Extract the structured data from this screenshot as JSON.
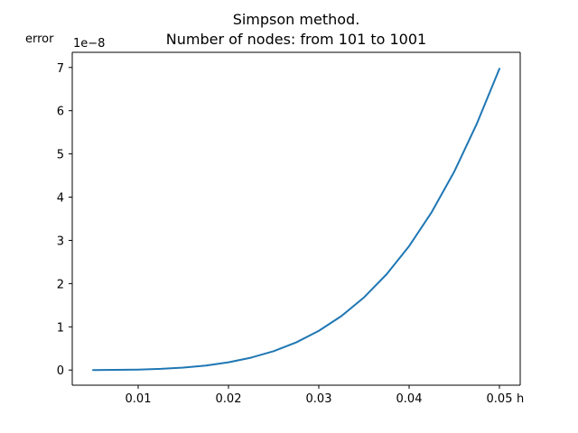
{
  "chart_data": {
    "type": "line",
    "title_lines": [
      "Simpson method.",
      "Number of nodes: from 101 to 1001"
    ],
    "xlabel": "h",
    "ylabel": "error",
    "y_offset_label": "1e−8",
    "xlim": [
      0.0027,
      0.0523
    ],
    "ylim": [
      -0.35,
      7.35
    ],
    "y_scale_note": "y values in units of 1e-8",
    "xticks": [
      0.01,
      0.02,
      0.03,
      0.04,
      0.05
    ],
    "xtick_labels": [
      "0.01",
      "0.02",
      "0.03",
      "0.04",
      "0.05"
    ],
    "yticks": [
      0,
      1,
      2,
      3,
      4,
      5,
      6,
      7
    ],
    "ytick_labels": [
      "0",
      "1",
      "2",
      "3",
      "4",
      "5",
      "6",
      "7"
    ],
    "grid": false,
    "line_color": "#1f77b4",
    "series": [
      {
        "name": "error",
        "x": [
          0.005,
          0.0075,
          0.01,
          0.0125,
          0.015,
          0.0175,
          0.02,
          0.0225,
          0.025,
          0.0275,
          0.03,
          0.0325,
          0.035,
          0.0375,
          0.04,
          0.0425,
          0.045,
          0.0475,
          0.05
        ],
        "y": [
          0.0007,
          0.0035,
          0.0112,
          0.0273,
          0.0567,
          0.105,
          0.179,
          0.287,
          0.437,
          0.64,
          0.907,
          1.249,
          1.68,
          2.214,
          2.867,
          3.653,
          4.591,
          5.7,
          6.97
        ]
      }
    ]
  }
}
